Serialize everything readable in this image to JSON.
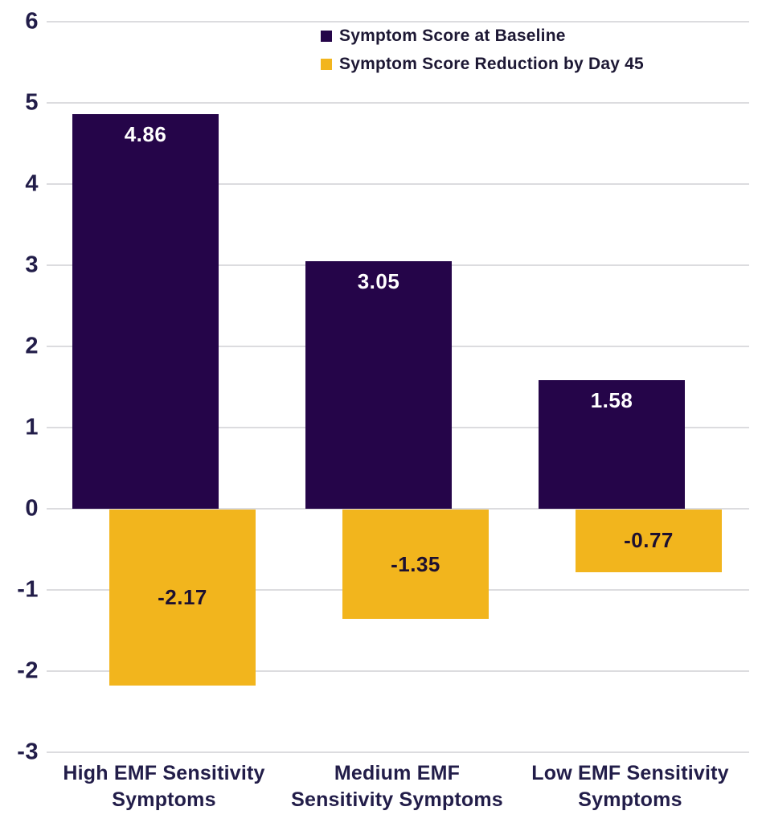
{
  "chart_data": {
    "type": "bar",
    "title": "",
    "xlabel": "",
    "ylabel": "",
    "categories": [
      "High EMF Sensitivity Symptoms",
      "Medium EMF Sensitivity Symptoms",
      "Low EMF Sensitivity Symptoms"
    ],
    "category_lines": [
      [
        "High EMF Sensitivity",
        "Symptoms"
      ],
      [
        "Medium EMF",
        "Sensitivity Symptoms"
      ],
      [
        "Low EMF Sensitivity",
        "Symptoms"
      ]
    ],
    "series": [
      {
        "name": "Symptom Score at Baseline",
        "color": "#250549",
        "label_color": "#ffffff",
        "values": [
          4.86,
          3.05,
          1.58
        ],
        "value_labels": [
          "4.86",
          "3.05",
          "1.58"
        ]
      },
      {
        "name": "Symptom Score Reduction by Day 45",
        "color": "#F2B51D",
        "label_color": "#1d1030",
        "values": [
          -2.17,
          -1.35,
          -0.77
        ],
        "value_labels": [
          "-2.17",
          "-1.35",
          "-0.77"
        ]
      }
    ],
    "y_ticks": [
      6,
      5,
      4,
      3,
      2,
      1,
      0,
      -1,
      -2,
      -3
    ],
    "y_tick_labels": [
      "6",
      "5",
      "4",
      "3",
      "2",
      "1",
      "0",
      "-1",
      "-2",
      "-3"
    ],
    "ylim": [
      -3,
      6
    ],
    "grid": true,
    "gridline_color": "#dcdcdf",
    "axis_text_color": "#221d49",
    "background_color": "#ffffff",
    "legend_position": "top-center",
    "bar_style": "overlapping-offset"
  }
}
